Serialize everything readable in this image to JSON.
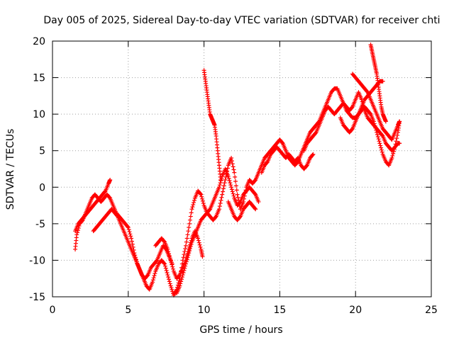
{
  "chart_data": {
    "type": "scatter",
    "title": "Day 005 of 2025, Sidereal Day-to-day VTEC variation (SDTVAR) for receiver chti",
    "xlabel": "GPS time / hours",
    "ylabel": "SDTVAR / TECUs",
    "xlim": [
      0,
      25
    ],
    "ylim": [
      -15,
      20
    ],
    "xticks": [
      0,
      5,
      10,
      15,
      20,
      25
    ],
    "yticks": [
      -15,
      -10,
      -5,
      0,
      5,
      10,
      15,
      20
    ],
    "grid": true,
    "marker": "+",
    "color": "#ff0000",
    "series": [
      {
        "points": [
          [
            1.5,
            -8.5
          ],
          [
            1.6,
            -6.5
          ],
          [
            1.8,
            -5
          ],
          [
            2.0,
            -4.5
          ],
          [
            2.2,
            -3.5
          ],
          [
            2.4,
            -2.5
          ],
          [
            2.6,
            -1.5
          ],
          [
            2.8,
            -1
          ],
          [
            3.0,
            -1.5
          ],
          [
            3.2,
            -2
          ],
          [
            3.4,
            -1.5
          ],
          [
            3.6,
            -1
          ],
          [
            3.8,
            -1.5
          ],
          [
            4.0,
            -2.5
          ],
          [
            4.2,
            -3.5
          ],
          [
            4.4,
            -4
          ],
          [
            4.6,
            -4.5
          ],
          [
            4.8,
            -5
          ],
          [
            5.0,
            -5.5
          ],
          [
            5.2,
            -7
          ],
          [
            5.4,
            -9
          ],
          [
            5.6,
            -10.5
          ],
          [
            5.8,
            -11.5
          ],
          [
            6.0,
            -12.5
          ],
          [
            6.2,
            -13.5
          ],
          [
            6.4,
            -14
          ],
          [
            6.6,
            -13
          ],
          [
            6.8,
            -11.5
          ],
          [
            7.0,
            -10.5
          ],
          [
            7.2,
            -10
          ],
          [
            7.4,
            -10.5
          ],
          [
            7.6,
            -12
          ],
          [
            7.8,
            -13.5
          ],
          [
            8.0,
            -14.8
          ],
          [
            8.2,
            -14
          ],
          [
            8.4,
            -12.5
          ],
          [
            8.6,
            -10
          ],
          [
            8.8,
            -8
          ],
          [
            9.0,
            -5.5
          ],
          [
            9.2,
            -3
          ],
          [
            9.4,
            -1.5
          ],
          [
            9.6,
            -0.5
          ],
          [
            9.8,
            -1
          ],
          [
            10.0,
            -2.5
          ],
          [
            10.2,
            -3.5
          ],
          [
            10.4,
            -4
          ],
          [
            10.6,
            -4.5
          ],
          [
            10.8,
            -4
          ],
          [
            11.0,
            -3
          ],
          [
            11.2,
            -1
          ],
          [
            11.4,
            1
          ],
          [
            11.6,
            3
          ],
          [
            11.8,
            4
          ],
          [
            12.0,
            2
          ],
          [
            12.2,
            -1
          ],
          [
            12.4,
            -3
          ],
          [
            12.6,
            -2
          ],
          [
            12.8,
            0
          ],
          [
            13.0,
            1
          ],
          [
            13.2,
            0.5
          ],
          [
            13.4,
            1
          ],
          [
            13.6,
            2
          ],
          [
            13.8,
            3
          ],
          [
            14.0,
            4
          ],
          [
            14.2,
            4.5
          ],
          [
            14.4,
            5
          ],
          [
            14.6,
            5.5
          ],
          [
            14.8,
            6
          ],
          [
            15.0,
            6.5
          ],
          [
            15.2,
            6
          ],
          [
            15.4,
            5
          ],
          [
            15.6,
            4
          ],
          [
            15.8,
            3.5
          ],
          [
            16.0,
            3
          ],
          [
            16.2,
            3.5
          ],
          [
            16.4,
            4.5
          ],
          [
            16.6,
            5.5
          ],
          [
            16.8,
            6.5
          ],
          [
            17.0,
            7.5
          ],
          [
            17.2,
            8
          ],
          [
            17.4,
            8.5
          ],
          [
            17.6,
            9
          ],
          [
            17.8,
            10
          ],
          [
            18.0,
            11
          ],
          [
            18.2,
            12
          ],
          [
            18.4,
            13
          ],
          [
            18.6,
            13.5
          ],
          [
            18.8,
            13.5
          ],
          [
            19.0,
            12.5
          ],
          [
            19.2,
            11.5
          ],
          [
            19.4,
            10.5
          ],
          [
            19.6,
            10
          ],
          [
            19.8,
            9.5
          ],
          [
            20.0,
            9.5
          ],
          [
            20.2,
            10
          ],
          [
            20.4,
            10.5
          ],
          [
            20.6,
            11
          ],
          [
            20.8,
            10.5
          ],
          [
            21.0,
            10
          ],
          [
            21.2,
            9
          ],
          [
            21.4,
            7.5
          ],
          [
            21.6,
            6
          ],
          [
            21.8,
            4.5
          ],
          [
            22.0,
            3.5
          ],
          [
            22.2,
            3
          ],
          [
            22.4,
            4
          ],
          [
            22.6,
            5.5
          ],
          [
            22.8,
            7.5
          ],
          [
            22.9,
            9
          ]
        ]
      },
      {
        "points": [
          [
            1.5,
            -6
          ],
          [
            1.7,
            -5
          ],
          [
            1.9,
            -4.5
          ],
          [
            2.1,
            -4
          ],
          [
            2.3,
            -3.5
          ],
          [
            2.5,
            -3
          ],
          [
            2.7,
            -2.5
          ],
          [
            2.9,
            -2
          ],
          [
            3.1,
            -1.5
          ],
          [
            3.3,
            -1
          ],
          [
            3.5,
            -0.5
          ],
          [
            3.7,
            0.5
          ],
          [
            3.8,
            1
          ]
        ]
      },
      {
        "points": [
          [
            2.7,
            -6
          ],
          [
            2.9,
            -5.5
          ],
          [
            3.1,
            -5
          ],
          [
            3.3,
            -4.5
          ],
          [
            3.5,
            -4
          ],
          [
            3.7,
            -3.5
          ],
          [
            3.9,
            -3
          ],
          [
            4.1,
            -3.5
          ],
          [
            4.3,
            -4
          ],
          [
            4.5,
            -5
          ],
          [
            4.7,
            -6
          ],
          [
            4.9,
            -7
          ],
          [
            5.1,
            -8
          ],
          [
            5.3,
            -9
          ],
          [
            5.5,
            -10
          ],
          [
            5.7,
            -11
          ],
          [
            5.9,
            -12
          ],
          [
            6.1,
            -12.5
          ],
          [
            6.3,
            -12
          ],
          [
            6.5,
            -11
          ],
          [
            6.7,
            -10.5
          ],
          [
            6.9,
            -10
          ],
          [
            7.1,
            -9
          ],
          [
            7.3,
            -8
          ],
          [
            7.5,
            -8.5
          ],
          [
            7.7,
            -9.5
          ],
          [
            7.9,
            -10.5
          ]
        ]
      },
      {
        "points": [
          [
            6.8,
            -8
          ],
          [
            7.0,
            -7.5
          ],
          [
            7.2,
            -7
          ],
          [
            7.4,
            -7.5
          ],
          [
            7.6,
            -8.5
          ],
          [
            7.8,
            -10
          ],
          [
            8.0,
            -11.5
          ],
          [
            8.2,
            -12.5
          ],
          [
            8.4,
            -12
          ],
          [
            8.6,
            -11
          ],
          [
            8.8,
            -10
          ],
          [
            9.0,
            -8.5
          ],
          [
            9.2,
            -7
          ],
          [
            9.4,
            -6
          ],
          [
            9.6,
            -7
          ],
          [
            9.8,
            -8.5
          ],
          [
            9.9,
            -9.5
          ]
        ]
      },
      {
        "points": [
          [
            8.2,
            -14.5
          ],
          [
            8.4,
            -13.5
          ],
          [
            8.6,
            -12
          ],
          [
            8.8,
            -10.5
          ],
          [
            9.0,
            -9
          ],
          [
            9.2,
            -7.5
          ],
          [
            9.4,
            -6.5
          ],
          [
            9.6,
            -5.5
          ],
          [
            9.8,
            -4.5
          ],
          [
            10.0,
            -4
          ],
          [
            10.2,
            -3.5
          ],
          [
            10.4,
            -3
          ],
          [
            10.6,
            -2
          ],
          [
            10.8,
            -1
          ],
          [
            11.0,
            0
          ],
          [
            11.2,
            1.5
          ],
          [
            11.4,
            2.5
          ],
          [
            11.6,
            1.5
          ],
          [
            11.8,
            0
          ],
          [
            12.0,
            -1.5
          ],
          [
            12.2,
            -2.5
          ],
          [
            12.4,
            -2
          ],
          [
            12.6,
            -1
          ],
          [
            12.8,
            -0.5
          ],
          [
            13.0,
            0
          ],
          [
            13.2,
            -0.5
          ],
          [
            13.4,
            -1
          ],
          [
            13.6,
            -2
          ]
        ]
      },
      {
        "points": [
          [
            10.0,
            16
          ],
          [
            10.1,
            14.5
          ],
          [
            10.2,
            13
          ],
          [
            10.3,
            11.5
          ],
          [
            10.4,
            10
          ],
          [
            10.5,
            9.5
          ],
          [
            10.6,
            9
          ],
          [
            10.7,
            8.5
          ],
          [
            10.8,
            7
          ],
          [
            10.9,
            5
          ],
          [
            11.0,
            3
          ],
          [
            11.1,
            1
          ]
        ]
      },
      {
        "points": [
          [
            11.6,
            -2
          ],
          [
            11.8,
            -3
          ],
          [
            12.0,
            -4
          ],
          [
            12.2,
            -4.5
          ],
          [
            12.4,
            -4
          ],
          [
            12.6,
            -3
          ],
          [
            12.8,
            -2.5
          ],
          [
            13.0,
            -2
          ],
          [
            13.2,
            -2.5
          ],
          [
            13.4,
            -3
          ]
        ]
      },
      {
        "points": [
          [
            13.8,
            2
          ],
          [
            14.0,
            3
          ],
          [
            14.2,
            3.5
          ],
          [
            14.4,
            4.5
          ],
          [
            14.6,
            5
          ],
          [
            14.8,
            5.5
          ],
          [
            15.0,
            5
          ],
          [
            15.2,
            4.5
          ],
          [
            15.4,
            4
          ],
          [
            15.6,
            4.5
          ],
          [
            15.8,
            4
          ],
          [
            16.0,
            3.5
          ],
          [
            16.2,
            4
          ],
          [
            16.4,
            3
          ],
          [
            16.6,
            2.5
          ],
          [
            16.8,
            3
          ],
          [
            17.0,
            4
          ],
          [
            17.2,
            4.5
          ]
        ]
      },
      {
        "points": [
          [
            16.6,
            5
          ],
          [
            16.8,
            6
          ],
          [
            17.0,
            6.5
          ],
          [
            17.2,
            7
          ],
          [
            17.4,
            7.5
          ],
          [
            17.6,
            8.5
          ],
          [
            17.8,
            9.5
          ],
          [
            18.0,
            10.5
          ],
          [
            18.2,
            11
          ],
          [
            18.4,
            10.5
          ],
          [
            18.6,
            10
          ],
          [
            18.8,
            10.5
          ],
          [
            19.0,
            11
          ],
          [
            19.2,
            11.5
          ],
          [
            19.4,
            11
          ],
          [
            19.6,
            10.5
          ],
          [
            19.8,
            11
          ],
          [
            20.0,
            12
          ],
          [
            20.2,
            13
          ],
          [
            20.4,
            12
          ],
          [
            20.6,
            10.5
          ],
          [
            20.8,
            9.5
          ],
          [
            21.0,
            9
          ],
          [
            21.2,
            8.5
          ],
          [
            21.4,
            8
          ],
          [
            21.6,
            7.5
          ],
          [
            21.8,
            7
          ],
          [
            22.0,
            6
          ],
          [
            22.2,
            5.5
          ],
          [
            22.4,
            5
          ],
          [
            22.6,
            5.5
          ],
          [
            22.8,
            6
          ],
          [
            22.9,
            6
          ]
        ]
      },
      {
        "points": [
          [
            19.8,
            15.5
          ],
          [
            20.0,
            15
          ],
          [
            20.2,
            14.5
          ],
          [
            20.4,
            14
          ],
          [
            20.6,
            13.5
          ],
          [
            20.8,
            13
          ],
          [
            21.0,
            12
          ],
          [
            21.2,
            11
          ],
          [
            21.4,
            10
          ],
          [
            21.6,
            9
          ],
          [
            21.8,
            8
          ],
          [
            22.0,
            7.5
          ],
          [
            22.2,
            7
          ],
          [
            22.4,
            6.5
          ],
          [
            22.6,
            7.5
          ],
          [
            22.8,
            8.5
          ],
          [
            22.9,
            9
          ]
        ]
      },
      {
        "points": [
          [
            21.0,
            19.5
          ],
          [
            21.1,
            18.5
          ],
          [
            21.2,
            17.5
          ],
          [
            21.3,
            16.5
          ],
          [
            21.4,
            15.5
          ],
          [
            21.5,
            14
          ],
          [
            21.6,
            12.5
          ],
          [
            21.7,
            11
          ],
          [
            21.8,
            10
          ],
          [
            21.9,
            9.5
          ],
          [
            22.0,
            9
          ]
        ]
      },
      {
        "points": [
          [
            19.0,
            9.5
          ],
          [
            19.2,
            8.5
          ],
          [
            19.4,
            8
          ],
          [
            19.6,
            7.5
          ],
          [
            19.8,
            8
          ],
          [
            20.0,
            9
          ],
          [
            20.2,
            10
          ],
          [
            20.4,
            11
          ],
          [
            20.6,
            12
          ],
          [
            20.8,
            12.5
          ],
          [
            21.0,
            13
          ],
          [
            21.2,
            13.5
          ],
          [
            21.4,
            14
          ],
          [
            21.6,
            14.5
          ],
          [
            21.8,
            14.5
          ]
        ]
      }
    ]
  }
}
